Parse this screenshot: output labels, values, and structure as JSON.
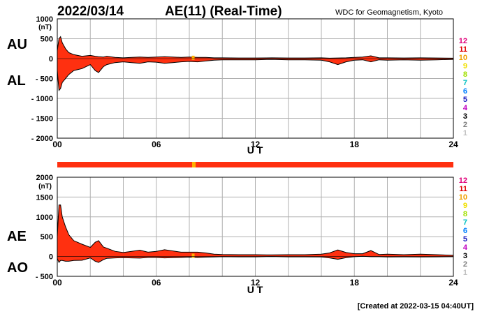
{
  "header": {
    "date": "2022/03/14",
    "title": "AE(11) (Real-Time)",
    "source": "WDC for Geomagnetism, Kyoto"
  },
  "footer": {
    "created": "[Created at 2022-03-15 04:40UT]"
  },
  "station_counts": [
    "12",
    "11",
    "10",
    "9",
    "8",
    "7",
    "6",
    "5",
    "4",
    "3",
    "2",
    "1"
  ],
  "station_colors": [
    "#e0007a",
    "#e00000",
    "#f0a000",
    "#f0e000",
    "#a0e000",
    "#00c0c0",
    "#0080ff",
    "#2020c0",
    "#c000c0",
    "#000000",
    "#808080",
    "#c0c0c0"
  ],
  "colors": {
    "fill": "#ff3010",
    "outline": "#000000",
    "grid": "#b0b0b0",
    "accent": "#ffb000"
  },
  "chart_data": [
    {
      "type": "area",
      "ylabel_unit": "(nT)",
      "side_labels": [
        "AU",
        "AL"
      ],
      "xlabel": "U T",
      "x_ticks": [
        "00",
        "06",
        "12",
        "18",
        "24"
      ],
      "y_ticks": [
        "1000",
        "500",
        "0",
        "- 500",
        "- 1000",
        "- 1500",
        "- 2000"
      ],
      "ylim": [
        -2000,
        1000
      ],
      "xlim": [
        0,
        24
      ],
      "grid": true,
      "series": [
        {
          "x": [
            0,
            0.1,
            0.2,
            0.3,
            0.5,
            0.7,
            1,
            1.5,
            2,
            2.3,
            2.5,
            2.8,
            3,
            3.5,
            4,
            4.5,
            5,
            5.5,
            6,
            6.5,
            7,
            7.5,
            8,
            8.5,
            9,
            9.5,
            10,
            11,
            12,
            13,
            14,
            15,
            16,
            16.5,
            17,
            17.5,
            18,
            18.5,
            19,
            19.5,
            20,
            21,
            22,
            23,
            24
          ],
          "y": [
            200,
            500,
            550,
            400,
            250,
            150,
            100,
            60,
            80,
            60,
            50,
            40,
            60,
            30,
            20,
            30,
            40,
            30,
            40,
            50,
            40,
            30,
            40,
            30,
            30,
            20,
            20,
            15,
            15,
            20,
            15,
            15,
            20,
            10,
            15,
            20,
            30,
            40,
            70,
            20,
            20,
            15,
            20,
            15,
            10
          ]
        },
        {
          "x": [
            0,
            0.1,
            0.2,
            0.3,
            0.5,
            0.7,
            1,
            1.5,
            2,
            2.3,
            2.5,
            2.8,
            3,
            3.5,
            4,
            4.5,
            5,
            5.5,
            6,
            6.5,
            7,
            7.5,
            8,
            8.5,
            9,
            9.5,
            10,
            11,
            12,
            13,
            14,
            15,
            16,
            16.5,
            17,
            17.5,
            18,
            18.5,
            19,
            19.5,
            20,
            21,
            22,
            23,
            24
          ],
          "y": [
            -300,
            -800,
            -750,
            -600,
            -500,
            -400,
            -300,
            -250,
            -150,
            -300,
            -350,
            -200,
            -150,
            -100,
            -80,
            -100,
            -120,
            -80,
            -90,
            -120,
            -100,
            -80,
            -70,
            -80,
            -60,
            -40,
            -30,
            -30,
            -30,
            -20,
            -30,
            -30,
            -40,
            -80,
            -150,
            -80,
            -40,
            -30,
            -80,
            -30,
            -40,
            -30,
            -40,
            -30,
            -20
          ]
        }
      ]
    },
    {
      "type": "area",
      "ylabel_unit": "(nT)",
      "side_labels": [
        "AE",
        "AO"
      ],
      "xlabel": "U T",
      "x_ticks": [
        "00",
        "06",
        "12",
        "18",
        "24"
      ],
      "y_ticks": [
        "2000",
        "1500",
        "1000",
        "500",
        "0",
        "- 500"
      ],
      "ylim": [
        -500,
        2000
      ],
      "xlim": [
        0,
        24
      ],
      "grid": true,
      "series": [
        {
          "x": [
            0,
            0.1,
            0.2,
            0.3,
            0.5,
            0.7,
            1,
            1.5,
            2,
            2.3,
            2.5,
            2.8,
            3,
            3.5,
            4,
            4.5,
            5,
            5.5,
            6,
            6.5,
            7,
            7.5,
            8,
            8.5,
            9,
            9.5,
            10,
            11,
            12,
            13,
            14,
            15,
            16,
            16.5,
            17,
            17.5,
            18,
            18.5,
            19,
            19.5,
            20,
            21,
            22,
            23,
            24
          ],
          "y": [
            500,
            1300,
            1300,
            1000,
            750,
            550,
            400,
            310,
            230,
            360,
            400,
            240,
            210,
            130,
            100,
            130,
            160,
            110,
            130,
            170,
            140,
            110,
            110,
            110,
            90,
            60,
            50,
            45,
            45,
            40,
            45,
            45,
            60,
            90,
            165,
            100,
            70,
            70,
            150,
            50,
            60,
            45,
            60,
            45,
            30
          ]
        },
        {
          "x": [
            0,
            0.1,
            0.2,
            0.3,
            0.5,
            0.7,
            1,
            1.5,
            2,
            2.3,
            2.5,
            2.8,
            3,
            3.5,
            4,
            4.5,
            5,
            5.5,
            6,
            6.5,
            7,
            7.5,
            8,
            8.5,
            9,
            9.5,
            10,
            11,
            12,
            13,
            14,
            15,
            16,
            16.5,
            17,
            17.5,
            18,
            18.5,
            19,
            19.5,
            20,
            21,
            22,
            23,
            24
          ],
          "y": [
            -50,
            -150,
            -100,
            -100,
            -120,
            -120,
            -100,
            -95,
            -35,
            -120,
            -150,
            -80,
            -45,
            -35,
            -30,
            -35,
            -40,
            -25,
            -25,
            -35,
            -30,
            -25,
            -15,
            -25,
            -15,
            -10,
            -5,
            -8,
            -8,
            0,
            -8,
            -8,
            -10,
            -35,
            -70,
            -30,
            -5,
            5,
            -5,
            -5,
            -10,
            -8,
            -10,
            -8,
            -5
          ]
        }
      ]
    }
  ]
}
